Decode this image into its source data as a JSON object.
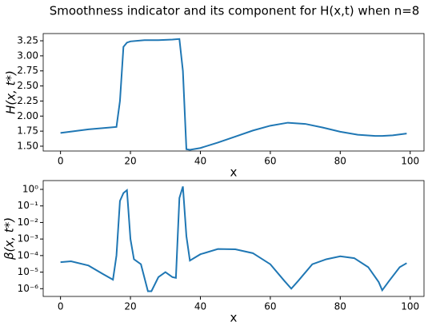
{
  "title": "Smoothness indicator and its component for H(x,t) when n=8",
  "chart_data": [
    {
      "type": "line",
      "xlabel": "x",
      "ylabel": "H(x, t*)",
      "yscale": "linear",
      "xlim": [
        -4.95,
        103.95
      ],
      "xticks": [
        0,
        20,
        40,
        60,
        80,
        100
      ],
      "ylim": [
        1.42,
        3.37
      ],
      "yticks": [
        {
          "value": 1.5,
          "label": "1.50"
        },
        1.75,
        {
          "value": 2.0,
          "label": "2.00"
        },
        2.25,
        {
          "value": 2.5,
          "label": "2.50"
        },
        2.75,
        {
          "value": 3.0,
          "label": "3.00"
        },
        3.25
      ],
      "x": [
        0,
        4,
        8,
        12,
        16,
        17,
        18,
        19,
        20,
        24,
        28,
        32,
        34,
        35,
        36,
        37,
        40,
        45,
        50,
        55,
        60,
        65,
        70,
        75,
        80,
        85,
        90,
        92,
        95,
        99
      ],
      "series": [
        {
          "color": "#1f77b4",
          "values": [
            1.72,
            1.75,
            1.78,
            1.8,
            1.82,
            2.25,
            3.15,
            3.22,
            3.24,
            3.26,
            3.26,
            3.27,
            3.28,
            2.75,
            1.45,
            1.44,
            1.47,
            1.56,
            1.66,
            1.76,
            1.84,
            1.89,
            1.87,
            1.81,
            1.74,
            1.69,
            1.67,
            1.67,
            1.68,
            1.71
          ]
        }
      ]
    },
    {
      "type": "line",
      "xlabel": "x",
      "ylabel": "β(x, t*)",
      "yscale": "log",
      "xlim": [
        -4.95,
        103.95
      ],
      "xticks": [
        0,
        20,
        40,
        60,
        80,
        100
      ],
      "ylim": [
        3.4e-07,
        3.4
      ],
      "yticks": [
        {
          "value": 1e-06,
          "label": "10⁻⁶"
        },
        {
          "value": 1e-05,
          "label": "10⁻⁵"
        },
        {
          "value": 0.0001,
          "label": "10⁻⁴"
        },
        {
          "value": 0.001,
          "label": "10⁻³"
        },
        {
          "value": 0.01,
          "label": "10⁻²"
        },
        {
          "value": 0.1,
          "label": "10⁻¹"
        },
        {
          "value": 1,
          "label": "10⁰"
        }
      ],
      "x": [
        0,
        3,
        8,
        12,
        15,
        16,
        17,
        18,
        19,
        20,
        21,
        23,
        25,
        26,
        28,
        30,
        32,
        33,
        34,
        35,
        36,
        37,
        40,
        45,
        50,
        55,
        60,
        64,
        66,
        68,
        72,
        76,
        80,
        84,
        88,
        91,
        92,
        94,
        97,
        99
      ],
      "series": [
        {
          "color": "#1f77b4",
          "values": [
            4e-05,
            4.5e-05,
            2.5e-05,
            8e-06,
            3.5e-06,
            0.0001,
            0.2,
            0.6,
            0.9,
            0.001,
            6e-05,
            3e-05,
            7e-07,
            7e-07,
            5e-06,
            1e-05,
            5e-06,
            4.5e-06,
            0.3,
            1.5,
            0.0015,
            5e-05,
            0.00012,
            0.00025,
            0.00024,
            0.00014,
            3e-05,
            3e-06,
            1e-06,
            3e-06,
            3e-05,
            6e-05,
            9e-05,
            7e-05,
            2e-05,
            2.5e-06,
            8e-07,
            3e-06,
            2e-05,
            3.5e-05
          ]
        }
      ]
    }
  ]
}
